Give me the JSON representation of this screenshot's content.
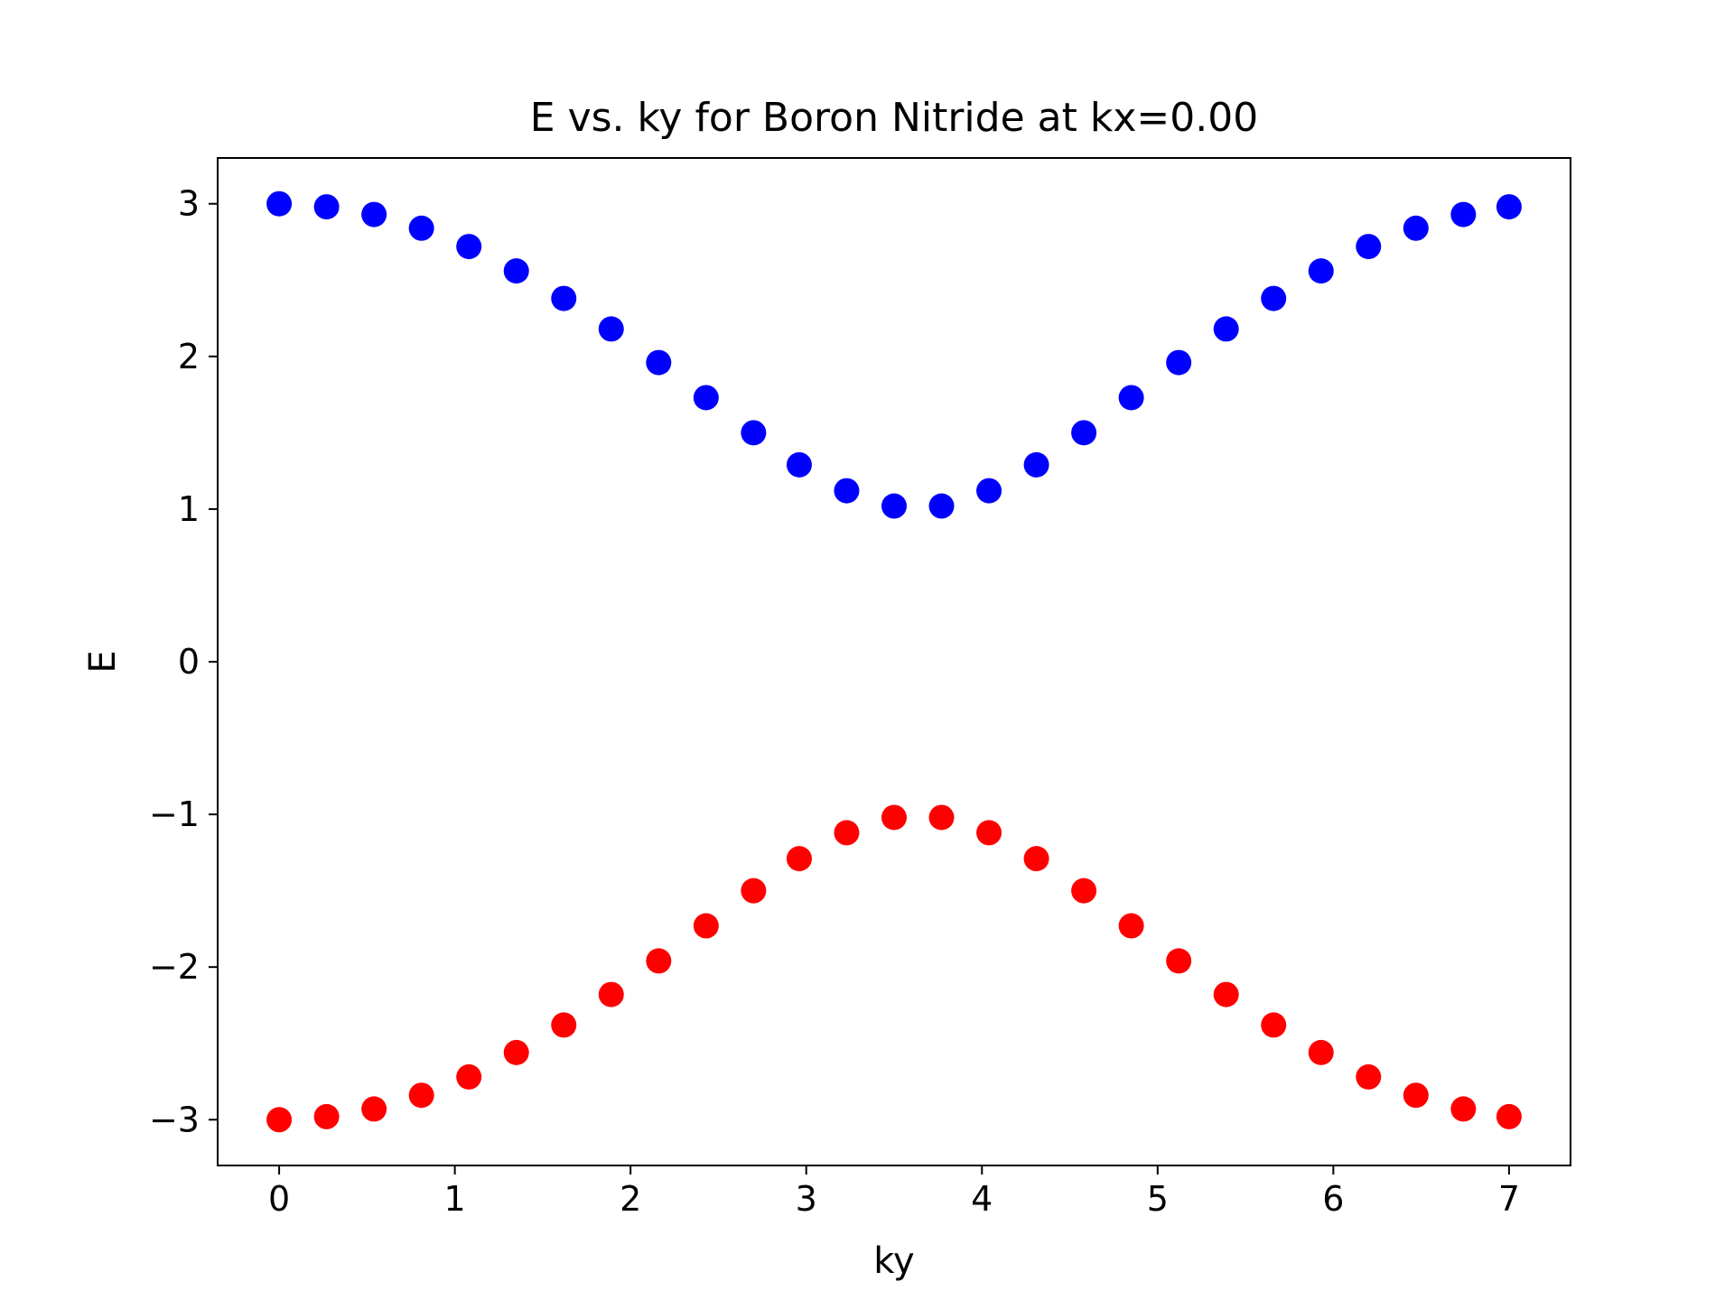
{
  "chart_data": {
    "type": "scatter",
    "title": "E vs. ky for Boron Nitride at kx=0.00",
    "xlabel": "ky",
    "ylabel": "E",
    "xlim": [
      -0.35,
      7.35
    ],
    "ylim": [
      -3.3,
      3.3
    ],
    "xticks": [
      0,
      1,
      2,
      3,
      4,
      5,
      6,
      7
    ],
    "xtick_labels": [
      "0",
      "1",
      "2",
      "3",
      "4",
      "5",
      "6",
      "7"
    ],
    "yticks": [
      -3,
      -2,
      -1,
      0,
      1,
      2,
      3
    ],
    "ytick_labels": [
      "−3",
      "−2",
      "−1",
      "0",
      "1",
      "2",
      "3"
    ],
    "grid": false,
    "legend": "none",
    "x": [
      0.0,
      0.27,
      0.54,
      0.81,
      1.08,
      1.35,
      1.62,
      1.89,
      2.16,
      2.43,
      2.7,
      2.96,
      3.23,
      3.5,
      3.77,
      4.04,
      4.31,
      4.58,
      4.85,
      5.12,
      5.39,
      5.66,
      5.93,
      6.2,
      6.47,
      6.74,
      7.0
    ],
    "series": [
      {
        "color": "#0000ff",
        "values": [
          3.0,
          2.98,
          2.93,
          2.84,
          2.72,
          2.56,
          2.38,
          2.18,
          1.96,
          1.73,
          1.5,
          1.29,
          1.12,
          1.02,
          1.02,
          1.12,
          1.29,
          1.5,
          1.73,
          1.96,
          2.18,
          2.38,
          2.56,
          2.72,
          2.84,
          2.93,
          2.98
        ]
      },
      {
        "color": "#ff0000",
        "values": [
          -3.0,
          -2.98,
          -2.93,
          -2.84,
          -2.72,
          -2.56,
          -2.38,
          -2.18,
          -1.96,
          -1.73,
          -1.5,
          -1.29,
          -1.12,
          -1.02,
          -1.02,
          -1.12,
          -1.29,
          -1.5,
          -1.73,
          -1.96,
          -2.18,
          -2.38,
          -2.56,
          -2.72,
          -2.84,
          -2.93,
          -2.98
        ]
      }
    ]
  }
}
